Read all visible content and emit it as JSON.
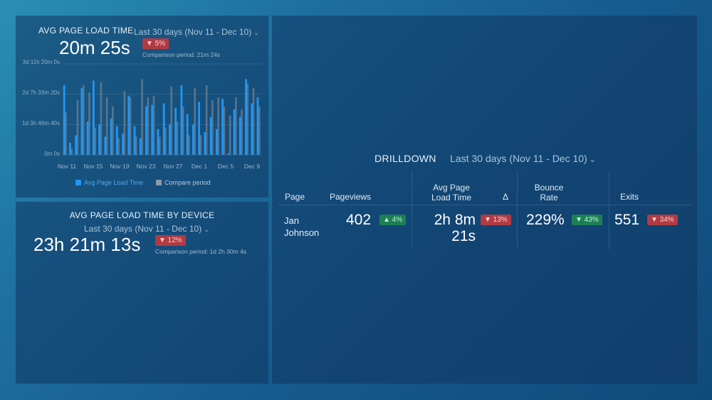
{
  "panel1": {
    "title": "AVG PAGE LOAD TIME",
    "range": "Last 30 days (Nov 11 - Dec 10)",
    "value": "20m 25s",
    "change": "▼ 5%",
    "comparison": "Comparison period: 21m 24s",
    "legend_primary": "Avg Page Load Time",
    "legend_compare": "Compare period",
    "colors": {
      "primary": "#2196f3",
      "compare": "#6f8191"
    }
  },
  "chart_data": {
    "type": "bar",
    "y_ticks": [
      "3d 11h 20m 0s",
      "2d 7h 33m 20s",
      "1d 3h 46m 40s",
      "0m 0s"
    ],
    "x_ticks": [
      "Nov 11",
      "Nov 15",
      "Nov 19",
      "Nov 23",
      "Nov 27",
      "Dec 1",
      "Dec 5",
      "Dec 9"
    ],
    "ylim": [
      0,
      300000
    ],
    "series": [
      {
        "name": "Avg Page Load Time",
        "values": [
          230000,
          40000,
          65000,
          220000,
          110000,
          245000,
          100000,
          60000,
          120000,
          95000,
          70000,
          195000,
          95000,
          55000,
          160000,
          165000,
          85000,
          170000,
          100000,
          155000,
          230000,
          135000,
          100000,
          175000,
          75000,
          125000,
          85000,
          185000,
          5000,
          150000,
          125000,
          250000,
          170000,
          190000
        ]
      },
      {
        "name": "Compare period",
        "values": [
          140000,
          20000,
          180000,
          230000,
          205000,
          90000,
          240000,
          190000,
          160000,
          55000,
          210000,
          190000,
          60000,
          250000,
          190000,
          195000,
          60000,
          90000,
          225000,
          110000,
          160000,
          65000,
          220000,
          65000,
          230000,
          180000,
          190000,
          160000,
          130000,
          190000,
          150000,
          235000,
          220000,
          160000
        ]
      }
    ]
  },
  "panel2": {
    "title": "AVG PAGE LOAD TIME BY DEVICE",
    "range": "Last 30 days (Nov 11 - Dec 10)",
    "value": "23h 21m 13s",
    "change": "▼ 12%",
    "comparison": "Comparison period: 1d 2h 30m 4s"
  },
  "drilldown": {
    "title": "DRILLDOWN",
    "range": "Last 30 days (Nov 11 - Dec 10)",
    "headers": {
      "page": "Page",
      "pageviews": "Pageviews",
      "avg_load_1": "Avg Page",
      "avg_load_2": "Load Time",
      "delta": "Δ",
      "bounce_1": "Bounce",
      "bounce_2": "Rate",
      "exits": "Exits"
    },
    "row": {
      "page_1": "Jan",
      "page_2": "Johnson",
      "pageviews": "402",
      "pageviews_change": "▲ 4%",
      "avg_load_1": "2h 8m",
      "avg_load_2": "21s",
      "avg_load_change": "▼ 13%",
      "bounce": "229%",
      "bounce_change": "▼ 43%",
      "exits": "551",
      "exits_change": "▼ 34%"
    }
  }
}
